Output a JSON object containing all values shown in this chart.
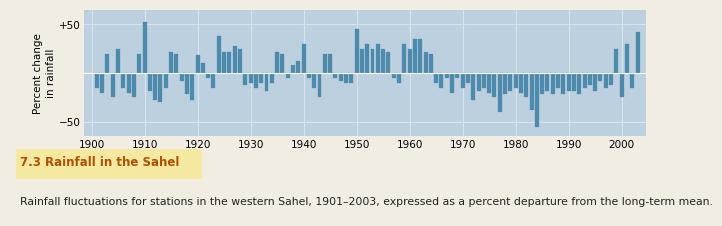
{
  "years": [
    1901,
    1902,
    1903,
    1904,
    1905,
    1906,
    1907,
    1908,
    1909,
    1910,
    1911,
    1912,
    1913,
    1914,
    1915,
    1916,
    1917,
    1918,
    1919,
    1920,
    1921,
    1922,
    1923,
    1924,
    1925,
    1926,
    1927,
    1928,
    1929,
    1930,
    1931,
    1932,
    1933,
    1934,
    1935,
    1936,
    1937,
    1938,
    1939,
    1940,
    1941,
    1942,
    1943,
    1944,
    1945,
    1946,
    1947,
    1948,
    1949,
    1950,
    1951,
    1952,
    1953,
    1954,
    1955,
    1956,
    1957,
    1958,
    1959,
    1960,
    1961,
    1962,
    1963,
    1964,
    1965,
    1966,
    1967,
    1968,
    1969,
    1970,
    1971,
    1972,
    1973,
    1974,
    1975,
    1976,
    1977,
    1978,
    1979,
    1980,
    1981,
    1982,
    1983,
    1984,
    1985,
    1986,
    1987,
    1988,
    1989,
    1990,
    1991,
    1992,
    1993,
    1994,
    1995,
    1996,
    1997,
    1998,
    1999,
    2000,
    2001,
    2002,
    2003
  ],
  "values": [
    -15,
    -20,
    20,
    -25,
    25,
    -15,
    -20,
    -25,
    20,
    52,
    -18,
    -28,
    -30,
    -15,
    22,
    20,
    -8,
    -22,
    -28,
    18,
    10,
    -5,
    -15,
    38,
    22,
    22,
    28,
    25,
    -12,
    -10,
    -15,
    -10,
    -18,
    -10,
    22,
    20,
    -5,
    8,
    12,
    30,
    -5,
    -15,
    -25,
    20,
    20,
    -5,
    -8,
    -10,
    -10,
    45,
    25,
    30,
    25,
    30,
    25,
    22,
    -5,
    -10,
    30,
    25,
    35,
    35,
    22,
    20,
    -10,
    -15,
    -5,
    -20,
    -5,
    -15,
    -10,
    -28,
    -18,
    -15,
    -20,
    -25,
    -40,
    -22,
    -18,
    -15,
    -20,
    -25,
    -38,
    -55,
    -22,
    -18,
    -22,
    -15,
    -22,
    -18,
    -18,
    -22,
    -15,
    -12,
    -18,
    -8,
    -15,
    -12,
    25,
    -25,
    30,
    -15,
    42
  ],
  "bar_color": "#4d8aab",
  "plot_bg": "#bdd0df",
  "figure_bg": "#f2ede2",
  "title_bg": "#f5e8a0",
  "ylabel": "Percent change\nin rainfall",
  "xlim": [
    1898.5,
    2004.5
  ],
  "ylim": [
    -65,
    65
  ],
  "title": "7.3 Rainfall in the Sahel",
  "caption": "Rainfall fluctuations for stations in the western Sahel, 1901–2003, expressed as a percent departure from the long-term mean.",
  "title_color": "#b05000",
  "title_fontsize": 8.5,
  "caption_fontsize": 7.8,
  "bar_width": 0.75,
  "xticks": [
    1900,
    1910,
    1920,
    1930,
    1940,
    1950,
    1960,
    1970,
    1980,
    1990,
    2000
  ],
  "xtick_labels": [
    "1900",
    "1910",
    "1920",
    "1930",
    "1940",
    "1950",
    "1960",
    "1970",
    "1980",
    "1990",
    "2000"
  ],
  "yticks": [
    -50,
    0,
    50
  ],
  "ytick_labels": [
    "−50",
    "",
    "+50"
  ],
  "tick_fontsize": 7.5,
  "grid_color": "#d6e4ef"
}
